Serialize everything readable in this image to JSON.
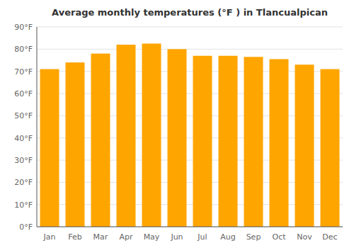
{
  "chart_data": {
    "type": "bar",
    "title": "Average monthly temperatures (°F ) in Tlancualpican",
    "categories": [
      "Jan",
      "Feb",
      "Mar",
      "Apr",
      "May",
      "Jun",
      "Jul",
      "Aug",
      "Sep",
      "Oct",
      "Nov",
      "Dec"
    ],
    "values": [
      71,
      74,
      78,
      82,
      82.5,
      80,
      77,
      77,
      76.5,
      75.5,
      73,
      71
    ],
    "color": "#FFA500",
    "ylim": [
      0,
      90
    ],
    "yticks": [
      {
        "value": 0,
        "label": "0°F"
      },
      {
        "value": 10,
        "label": "10°F"
      },
      {
        "value": 20,
        "label": "20°F"
      },
      {
        "value": 30,
        "label": "30°F"
      },
      {
        "value": 40,
        "label": "40°F"
      },
      {
        "value": 50,
        "label": "50°F"
      },
      {
        "value": 60,
        "label": "60°F"
      },
      {
        "value": 70,
        "label": "70°F"
      },
      {
        "value": 80,
        "label": "80°F"
      },
      {
        "value": 90,
        "label": "90°F"
      }
    ],
    "grid": true
  }
}
